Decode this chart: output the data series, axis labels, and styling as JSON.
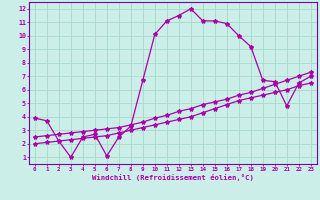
{
  "xlabel": "Windchill (Refroidissement éolien,°C)",
  "background_color": "#cceee8",
  "grid_color": "#aaddcc",
  "line_color": "#aa00aa",
  "spine_color": "#7700aa",
  "xlim": [
    -0.5,
    23.5
  ],
  "ylim": [
    0.5,
    12.5
  ],
  "xticks": [
    0,
    1,
    2,
    3,
    4,
    5,
    6,
    7,
    8,
    9,
    10,
    11,
    12,
    13,
    14,
    15,
    16,
    17,
    18,
    19,
    20,
    21,
    22,
    23
  ],
  "yticks": [
    1,
    2,
    3,
    4,
    5,
    6,
    7,
    8,
    9,
    10,
    11,
    12
  ],
  "series1_x": [
    0,
    1,
    2,
    3,
    4,
    5,
    6,
    7,
    8,
    9,
    10,
    11,
    12,
    13,
    14,
    15,
    16,
    17,
    18,
    19,
    20,
    21,
    22,
    23
  ],
  "series1_y": [
    3.9,
    3.7,
    2.2,
    1.0,
    2.5,
    2.7,
    1.1,
    2.5,
    3.3,
    6.7,
    10.1,
    11.1,
    11.5,
    12.0,
    11.1,
    11.1,
    10.9,
    10.0,
    9.2,
    6.7,
    6.6,
    4.8,
    6.5,
    7.0
  ],
  "series2_x": [
    0,
    1,
    2,
    3,
    4,
    5,
    6,
    7,
    8,
    9,
    10,
    11,
    12,
    13,
    14,
    15,
    16,
    17,
    18,
    19,
    20,
    21,
    22,
    23
  ],
  "series2_y": [
    2.0,
    2.1,
    2.2,
    2.3,
    2.4,
    2.5,
    2.6,
    2.8,
    3.0,
    3.2,
    3.4,
    3.6,
    3.8,
    4.0,
    4.3,
    4.6,
    4.9,
    5.2,
    5.4,
    5.6,
    5.8,
    6.0,
    6.3,
    6.5
  ],
  "series3_x": [
    0,
    1,
    2,
    3,
    4,
    5,
    6,
    7,
    8,
    9,
    10,
    11,
    12,
    13,
    14,
    15,
    16,
    17,
    18,
    19,
    20,
    21,
    22,
    23
  ],
  "series3_y": [
    2.5,
    2.6,
    2.7,
    2.8,
    2.9,
    3.0,
    3.1,
    3.2,
    3.4,
    3.6,
    3.9,
    4.1,
    4.4,
    4.6,
    4.9,
    5.1,
    5.3,
    5.6,
    5.8,
    6.1,
    6.4,
    6.7,
    7.0,
    7.3
  ],
  "marker": "*",
  "markersize": 3,
  "linewidth": 0.9
}
